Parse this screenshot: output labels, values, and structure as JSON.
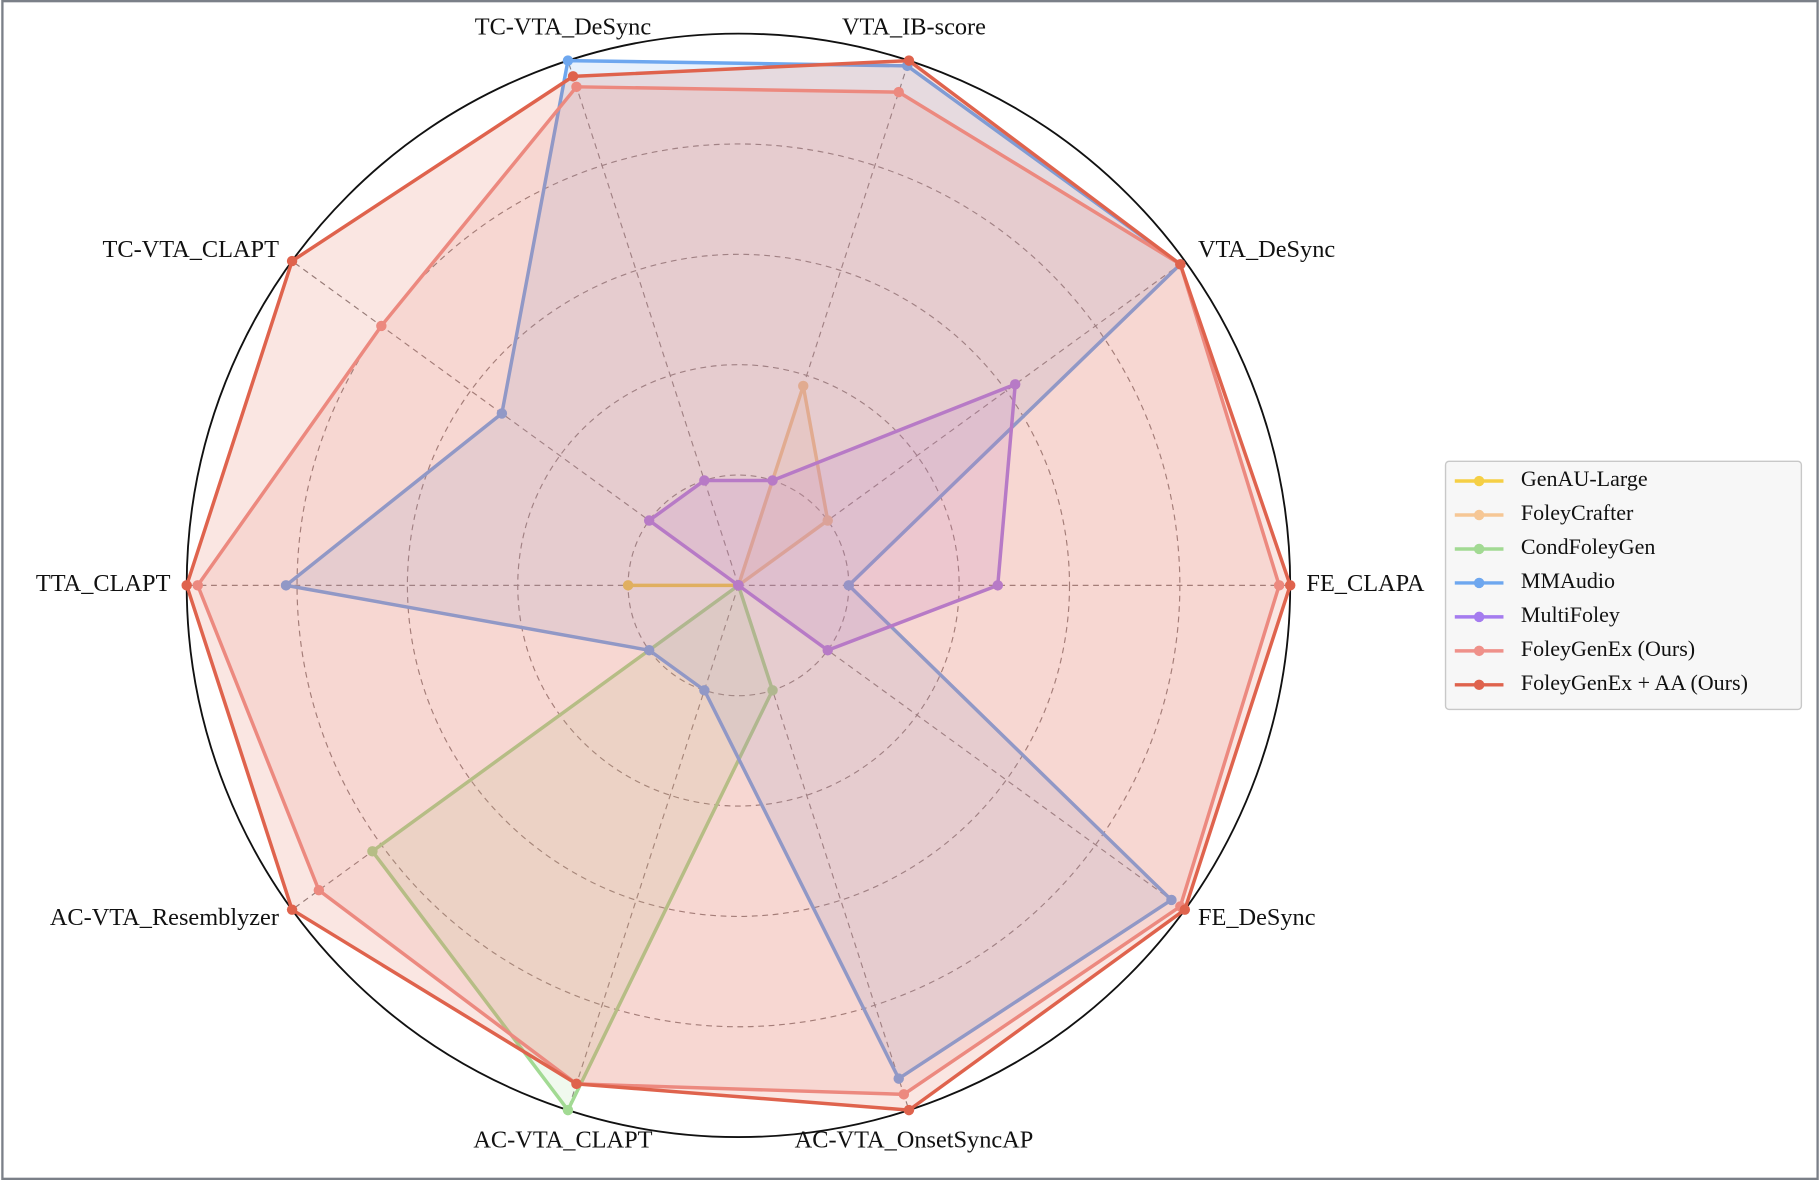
{
  "chart_data": {
    "type": "radar",
    "categories": [
      "FE_CLAPA",
      "VTA_DeSync",
      "VTA_IB-score",
      "TC-VTA_DeSync",
      "TC-VTA_CLAPT",
      "TTA_CLAPT",
      "AC-VTA_Resemblyzer",
      "AC-VTA_CLAPT",
      "AC-VTA_OnsetSyncAP",
      "FE_DeSync"
    ],
    "ylim": [
      0,
      1
    ],
    "yticks": [
      0.2,
      0.4,
      0.6,
      0.8,
      1.0
    ],
    "grid": true,
    "legend": "right",
    "series": [
      {
        "name": "GenAU-Large",
        "color": "#f5cf45",
        "values": [
          0,
          0,
          0,
          0,
          0,
          0.2,
          0,
          0,
          0,
          0
        ]
      },
      {
        "name": "FoleyCrafter",
        "color": "#f6c795",
        "values": [
          0,
          0.2,
          0.38,
          0,
          0,
          0,
          0,
          0,
          0,
          0
        ]
      },
      {
        "name": "CondFoleyGen",
        "color": "#a2da93",
        "values": [
          0,
          0,
          0,
          0,
          0,
          0,
          0.82,
          1.0,
          0.2,
          0
        ]
      },
      {
        "name": "MMAudio",
        "color": "#6ea7ef",
        "values": [
          0.2,
          0.99,
          0.99,
          1.0,
          0.53,
          0.82,
          0.2,
          0.2,
          0.94,
          0.97
        ]
      },
      {
        "name": "MultiFoley",
        "color": "#a57cef",
        "values": [
          0.47,
          0.62,
          0.2,
          0.2,
          0.2,
          0,
          0,
          0,
          0,
          0.2
        ]
      },
      {
        "name": "FoleyGenEx (Ours)",
        "color": "#ef918a",
        "values": [
          0.98,
          0.99,
          0.94,
          0.95,
          0.8,
          0.98,
          0.94,
          0.95,
          0.97,
          0.99
        ]
      },
      {
        "name": "FoleyGenEx + AA (Ours)",
        "color": "#df634d",
        "values": [
          1.0,
          0.99,
          1.0,
          0.97,
          1.0,
          1.0,
          1.0,
          0.95,
          1.0,
          1.0
        ]
      }
    ]
  }
}
